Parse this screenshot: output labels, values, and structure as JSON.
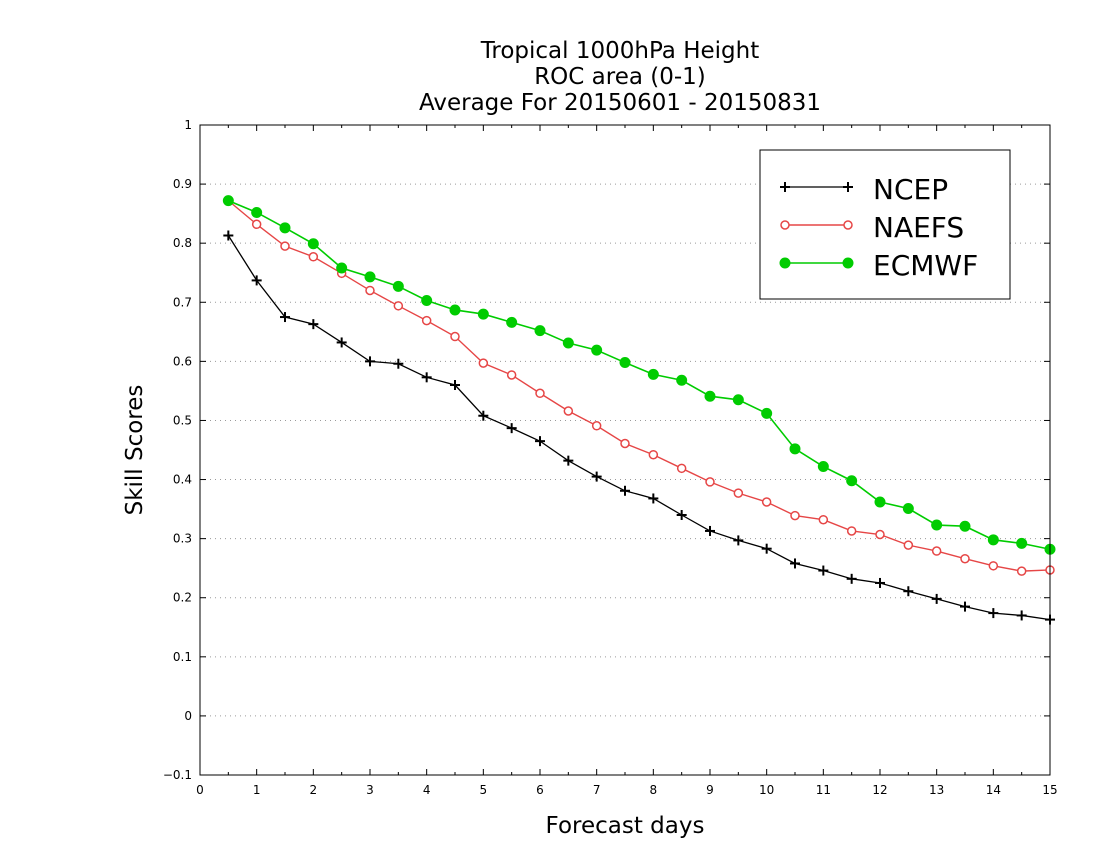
{
  "chart_data": {
    "type": "line",
    "title": [
      "Tropical 1000hPa Height",
      "ROC area (0-1)",
      "Average For 20150601 - 20150831"
    ],
    "xlabel": "Forecast days",
    "ylabel": "Skill Scores",
    "xlim": [
      0,
      15
    ],
    "ylim": [
      -0.1,
      1
    ],
    "xticks": [
      0,
      1,
      2,
      3,
      4,
      5,
      6,
      7,
      8,
      9,
      10,
      11,
      12,
      13,
      14,
      15
    ],
    "xtick_labels": [
      "0",
      "1",
      "2",
      "3",
      "4",
      "5",
      "6",
      "7",
      "8",
      "9",
      "10",
      "11",
      "12",
      "13",
      "14",
      "15"
    ],
    "yticks": [
      -0.1,
      0,
      0.1,
      0.2,
      0.3,
      0.4,
      0.5,
      0.6,
      0.7,
      0.8,
      0.9,
      1
    ],
    "ytick_labels": [
      "−0.1",
      "0",
      "0.1",
      "0.2",
      "0.3",
      "0.4",
      "0.5",
      "0.6",
      "0.7",
      "0.8",
      "0.9",
      "1"
    ],
    "grid": "horizontal dotted",
    "legend_position": "top-right",
    "x": [
      0.5,
      1,
      1.5,
      2,
      2.5,
      3,
      3.5,
      4,
      4.5,
      5,
      5.5,
      6,
      6.5,
      7,
      7.5,
      8,
      8.5,
      9,
      9.5,
      10,
      10.5,
      11,
      11.5,
      12,
      12.5,
      13,
      13.5,
      14,
      14.5,
      15
    ],
    "series": [
      {
        "name": "NCEP",
        "color": "#000000",
        "marker": "plus",
        "values": [
          0.813,
          0.737,
          0.675,
          0.663,
          0.632,
          0.6,
          0.596,
          0.573,
          0.56,
          0.508,
          0.487,
          0.465,
          0.432,
          0.405,
          0.381,
          0.368,
          0.34,
          0.313,
          0.297,
          0.283,
          0.258,
          0.246,
          0.232,
          0.225,
          0.211,
          0.198,
          0.185,
          0.174,
          0.17,
          0.163
        ]
      },
      {
        "name": "NAEFS",
        "color": "#e64646",
        "marker": "open-circle",
        "values": [
          0.872,
          0.832,
          0.795,
          0.777,
          0.749,
          0.72,
          0.694,
          0.669,
          0.642,
          0.597,
          0.577,
          0.546,
          0.516,
          0.491,
          0.461,
          0.442,
          0.419,
          0.396,
          0.377,
          0.362,
          0.339,
          0.332,
          0.313,
          0.307,
          0.289,
          0.279,
          0.266,
          0.254,
          0.245,
          0.247
        ]
      },
      {
        "name": "ECMWF",
        "color": "#00cc00",
        "marker": "filled-circle",
        "values": [
          0.872,
          0.852,
          0.826,
          0.799,
          0.758,
          0.743,
          0.727,
          0.703,
          0.687,
          0.68,
          0.666,
          0.652,
          0.631,
          0.619,
          0.598,
          0.578,
          0.568,
          0.541,
          0.535,
          0.512,
          0.452,
          0.422,
          0.398,
          0.362,
          0.351,
          0.323,
          0.321,
          0.298,
          0.292,
          0.282
        ]
      }
    ]
  }
}
